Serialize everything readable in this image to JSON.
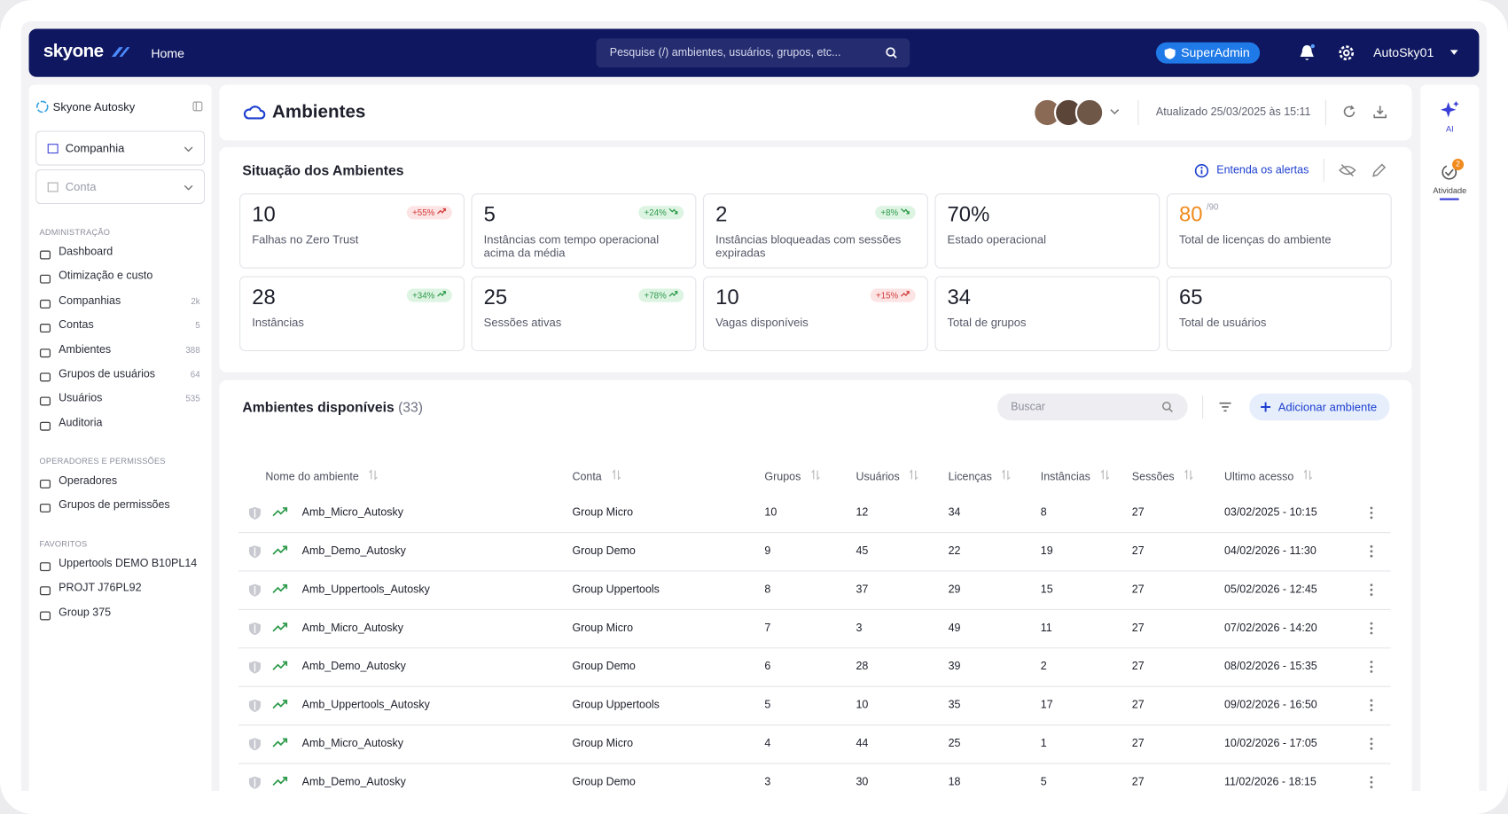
{
  "header": {
    "logo": "skyone",
    "nav": "Home",
    "search_placeholder": "Pesquise (/) ambientes, usuários, grupos, etc...",
    "role_badge": "SuperAdmin",
    "user": "AutoSky01"
  },
  "sidebar": {
    "org": "Skyone Autosky",
    "selects": [
      "Companhia",
      "Conta"
    ],
    "sections": [
      {
        "title": "ADMINISTRAÇÃO",
        "items": [
          {
            "label": "Dashboard"
          },
          {
            "label": "Otimização e custo"
          },
          {
            "label": "Companhias",
            "count": "2k"
          },
          {
            "label": "Contas",
            "count": "5"
          },
          {
            "label": "Ambientes",
            "count": "388"
          },
          {
            "label": "Grupos de usuários",
            "count": "64"
          },
          {
            "label": "Usuários",
            "count": "535"
          },
          {
            "label": "Auditoria"
          }
        ]
      },
      {
        "title": "OPERADORES E PERMISSÕES",
        "items": [
          {
            "label": "Operadores"
          },
          {
            "label": "Grupos de permissões"
          }
        ]
      },
      {
        "title": "FAVORITOS",
        "items": [
          {
            "label": "Uppertools DEMO B10PL14"
          },
          {
            "label": "PROJT J76PL92"
          },
          {
            "label": "Group 375"
          }
        ]
      }
    ]
  },
  "page": {
    "title": "Ambientes",
    "updated": "Atualizado 25/03/2025 às 15:11"
  },
  "status": {
    "title": "Situação dos Ambientes",
    "help_link": "Entenda os alertas",
    "cards": [
      {
        "value": "10",
        "badge": "+55%",
        "trend": "up",
        "tone": "red",
        "label": "Falhas no Zero Trust"
      },
      {
        "value": "5",
        "badge": "+24%",
        "trend": "down",
        "tone": "green",
        "label": "Instâncias com tempo operacional acima da média"
      },
      {
        "value": "2",
        "badge": "+8%",
        "trend": "down",
        "tone": "green",
        "label": "Instâncias bloqueadas com sessões expiradas"
      },
      {
        "value": "70%",
        "label": "Estado operacional"
      },
      {
        "value": "80",
        "suffix": "/90",
        "highlight": "#f08a1c",
        "label": "Total de licenças do ambiente"
      },
      {
        "value": "28",
        "badge": "+34%",
        "trend": "up",
        "tone": "green",
        "label": "Instâncias"
      },
      {
        "value": "25",
        "badge": "+78%",
        "trend": "up",
        "tone": "green",
        "label": "Sessões ativas"
      },
      {
        "value": "10",
        "badge": "+15%",
        "trend": "up",
        "tone": "red",
        "label": "Vagas disponíveis"
      },
      {
        "value": "34",
        "label": "Total de grupos"
      },
      {
        "value": "65",
        "label": "Total de usuários"
      }
    ]
  },
  "table": {
    "title": "Ambientes disponíveis",
    "count": "(33)",
    "search_placeholder": "Buscar",
    "add_button": "Adicionar ambiente",
    "columns": [
      "Nome do ambiente",
      "Conta",
      "Grupos",
      "Usuários",
      "Licenças",
      "Instâncias",
      "Sessões",
      "Ultimo acesso"
    ],
    "rows": [
      [
        "Amb_Micro_Autosky",
        "Group Micro",
        "10",
        "12",
        "34",
        "8",
        "27",
        "03/02/2025 - 10:15"
      ],
      [
        "Amb_Demo_Autosky",
        "Group Demo",
        "9",
        "45",
        "22",
        "19",
        "27",
        "04/02/2026 - 11:30"
      ],
      [
        "Amb_Uppertools_Autosky",
        "Group Uppertools",
        "8",
        "37",
        "29",
        "15",
        "27",
        "05/02/2026 - 12:45"
      ],
      [
        "Amb_Micro_Autosky",
        "Group Micro",
        "7",
        "3",
        "49",
        "11",
        "27",
        "07/02/2026 - 14:20"
      ],
      [
        "Amb_Demo_Autosky",
        "Group Demo",
        "6",
        "28",
        "39",
        "2",
        "27",
        "08/02/2026 - 15:35"
      ],
      [
        "Amb_Uppertools_Autosky",
        "Group Uppertools",
        "5",
        "10",
        "35",
        "17",
        "27",
        "09/02/2026 - 16:50"
      ],
      [
        "Amb_Micro_Autosky",
        "Group Micro",
        "4",
        "44",
        "25",
        "1",
        "27",
        "10/02/2026 - 17:05"
      ],
      [
        "Amb_Demo_Autosky",
        "Group Demo",
        "3",
        "30",
        "18",
        "5",
        "27",
        "11/02/2026 - 18:15"
      ]
    ]
  },
  "rail": {
    "ai": "AI",
    "activity": "Atividade",
    "activity_badge": "2"
  }
}
